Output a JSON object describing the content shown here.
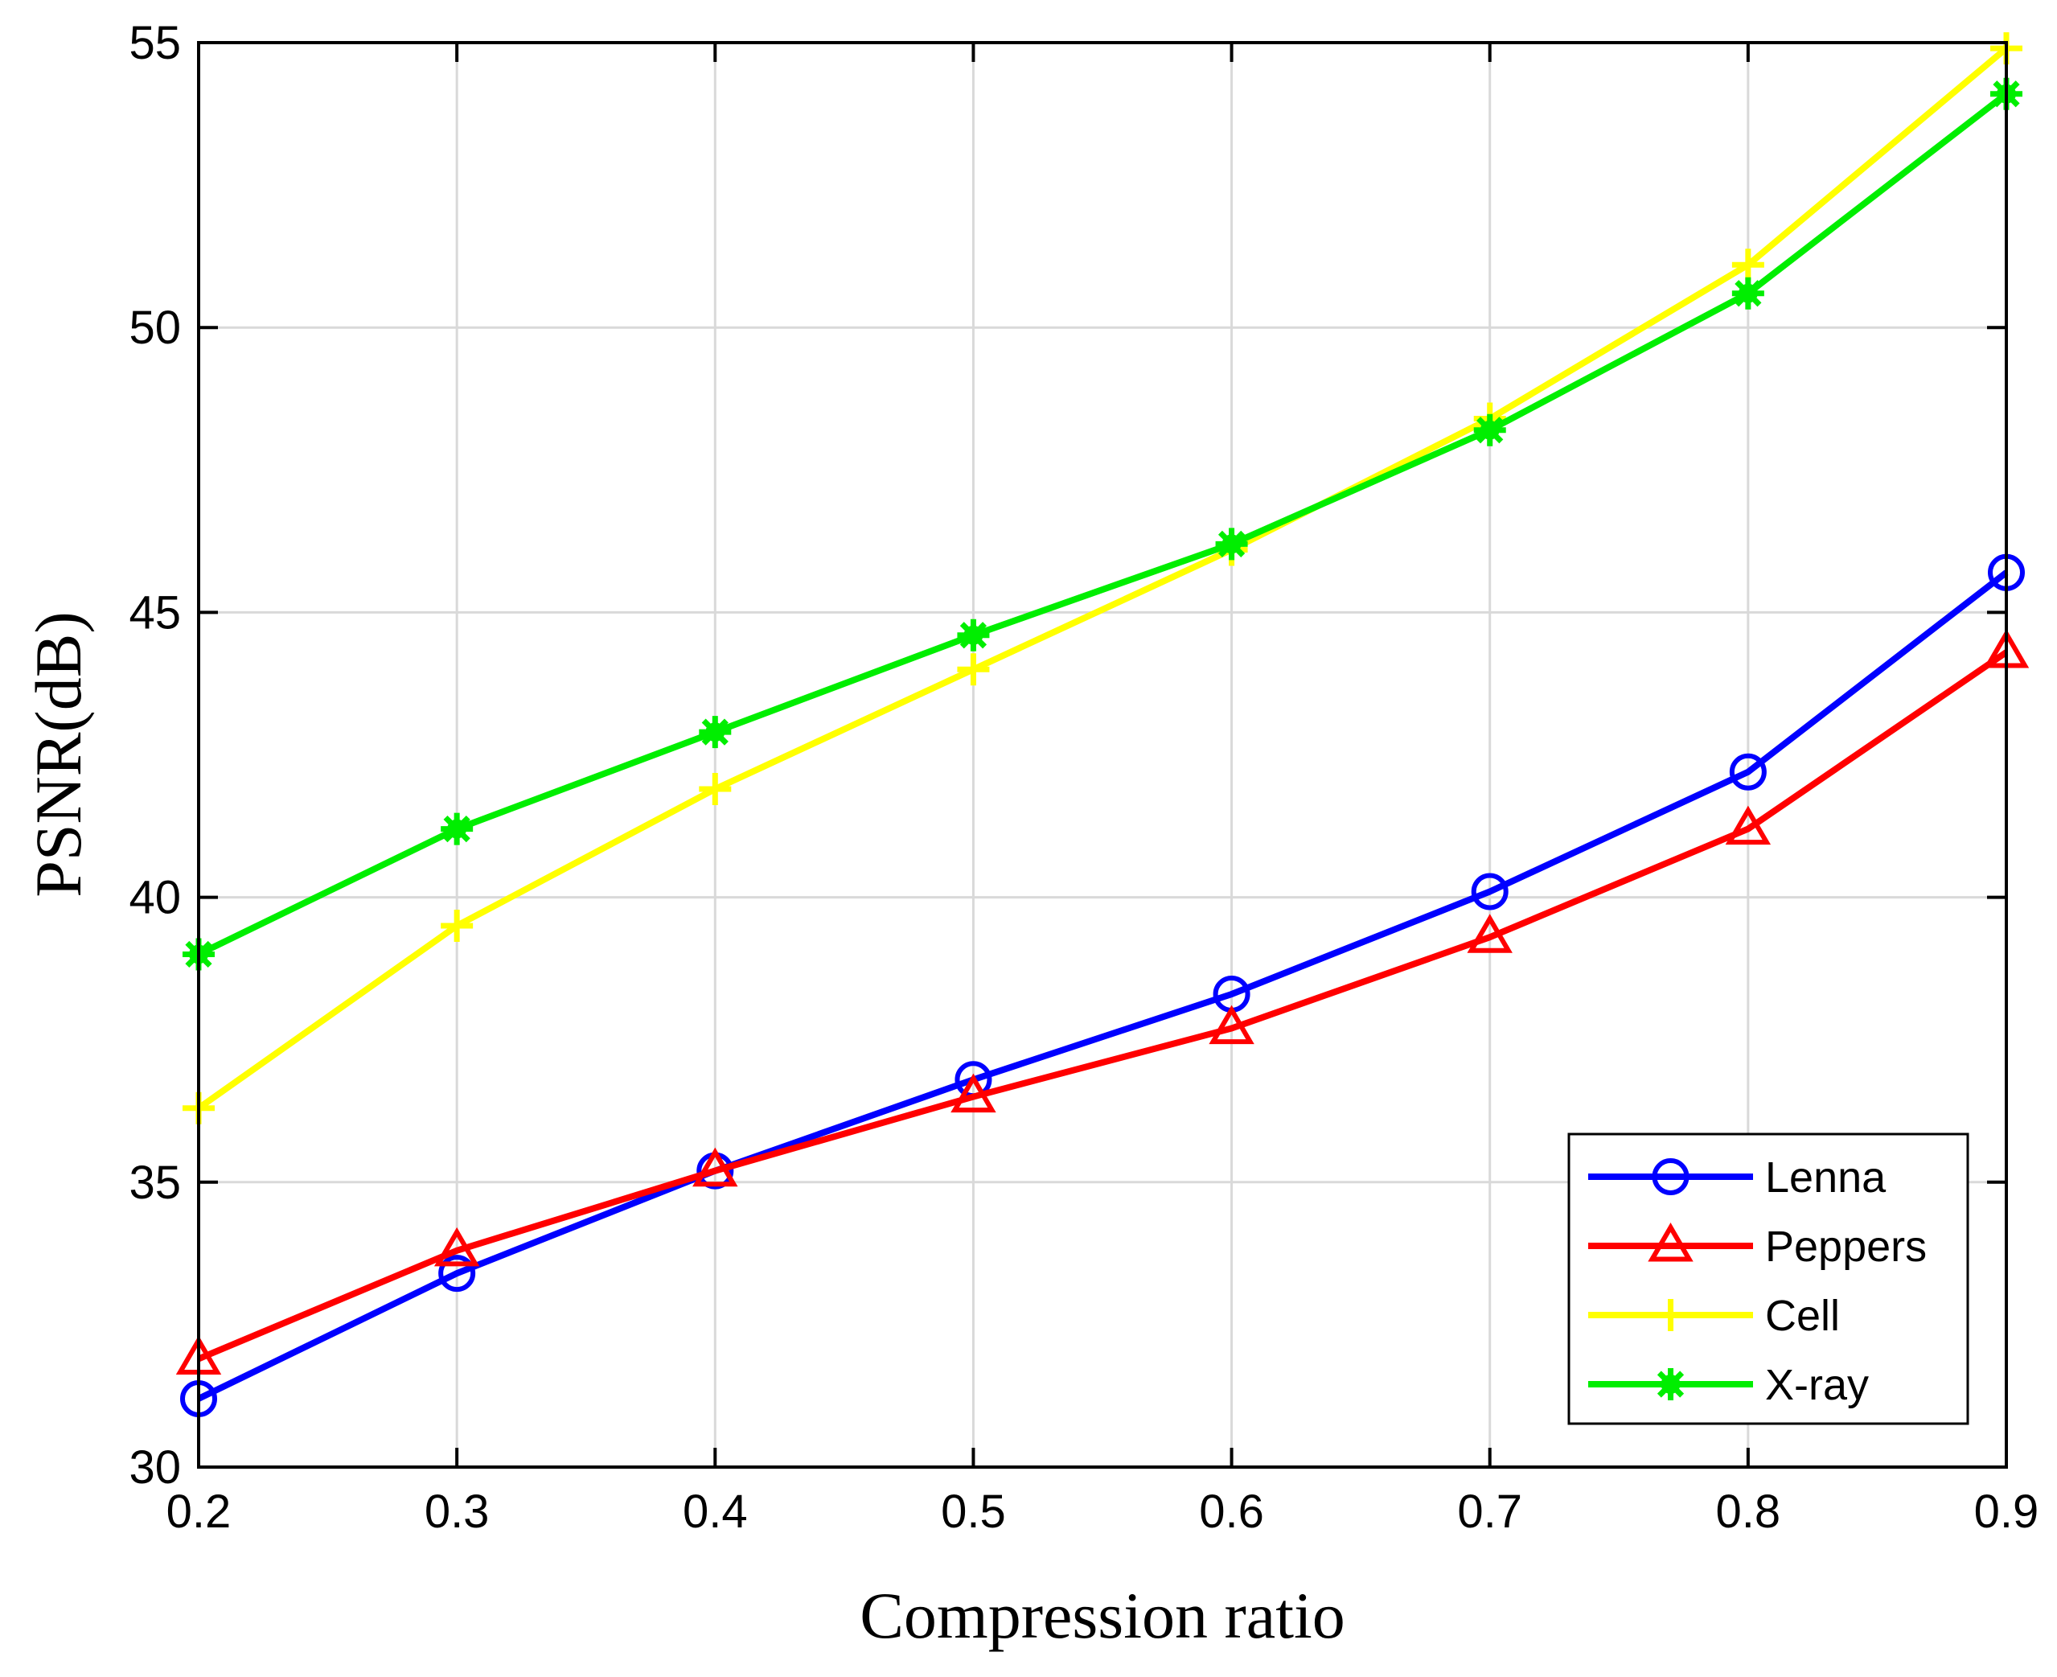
{
  "chart_data": {
    "type": "line",
    "title": "",
    "xlabel": "Compression ratio",
    "ylabel": "PSNR(dB)",
    "xlim": [
      0.2,
      0.9
    ],
    "ylim": [
      30,
      55
    ],
    "grid": true,
    "legend_position": "bottom-right",
    "x_ticks": [
      "0.2",
      "0.3",
      "0.4",
      "0.5",
      "0.6",
      "0.7",
      "0.8",
      "0.9"
    ],
    "y_ticks": [
      "30",
      "35",
      "40",
      "45",
      "50",
      "55"
    ],
    "x": [
      0.2,
      0.3,
      0.4,
      0.5,
      0.6,
      0.7,
      0.8,
      0.9
    ],
    "series": [
      {
        "name": "Lenna",
        "color": "#0000ff",
        "marker": "circle",
        "values": [
          31.2,
          33.4,
          35.2,
          36.8,
          38.3,
          40.1,
          42.2,
          45.7
        ]
      },
      {
        "name": "Peppers",
        "color": "#ff0000",
        "marker": "triangle",
        "values": [
          31.9,
          33.8,
          35.2,
          36.5,
          37.7,
          39.3,
          41.2,
          44.3
        ]
      },
      {
        "name": "Cell",
        "color": "#ffff00",
        "marker": "plus",
        "values": [
          36.3,
          39.5,
          41.9,
          44.0,
          46.1,
          48.4,
          51.1,
          54.9
        ]
      },
      {
        "name": "X-ray",
        "color": "#00ee00",
        "marker": "star",
        "values": [
          39.0,
          41.2,
          42.9,
          44.6,
          46.2,
          48.2,
          50.6,
          54.1
        ]
      }
    ]
  }
}
